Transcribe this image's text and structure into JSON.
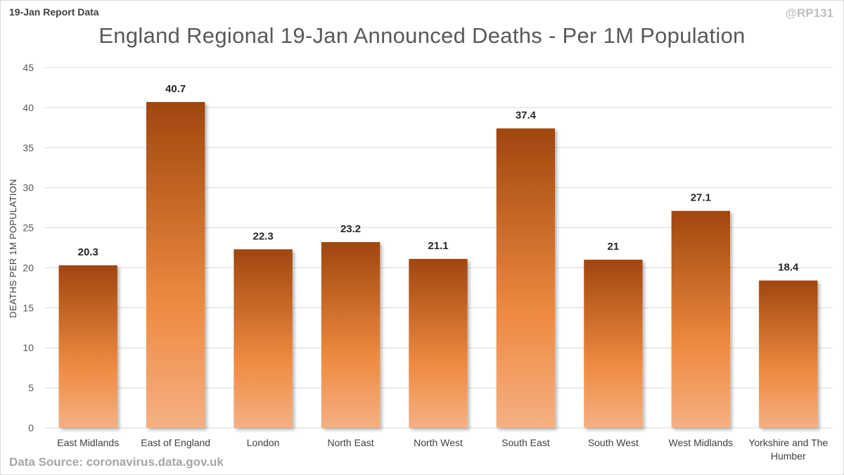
{
  "header": {
    "report_tag": "19-Jan Report Data",
    "handle": "@RP131"
  },
  "footer": {
    "source": "Data Source: coronavirus.data.gov.uk"
  },
  "colors": {
    "bar_top": "#a0460f",
    "bar_mid": "#ef8a40",
    "bar_bottom": "#f5b083",
    "grid": "#d9d9d9"
  },
  "chart_data": {
    "type": "bar",
    "title": "England Regional 19-Jan Announced Deaths - Per 1M Population",
    "xlabel": "",
    "ylabel": "DEATHS PER 1M POPULATION",
    "ylim": [
      0,
      45
    ],
    "yticks": [
      0,
      5,
      10,
      15,
      20,
      25,
      30,
      35,
      40,
      45
    ],
    "grid": true,
    "categories": [
      "East Midlands",
      "East of England",
      "London",
      "North East",
      "North West",
      "South East",
      "South West",
      "West Midlands",
      "Yorkshire and The Humber"
    ],
    "values": [
      20.3,
      40.7,
      22.3,
      23.2,
      21.1,
      37.4,
      21,
      27.1,
      18.4
    ]
  }
}
